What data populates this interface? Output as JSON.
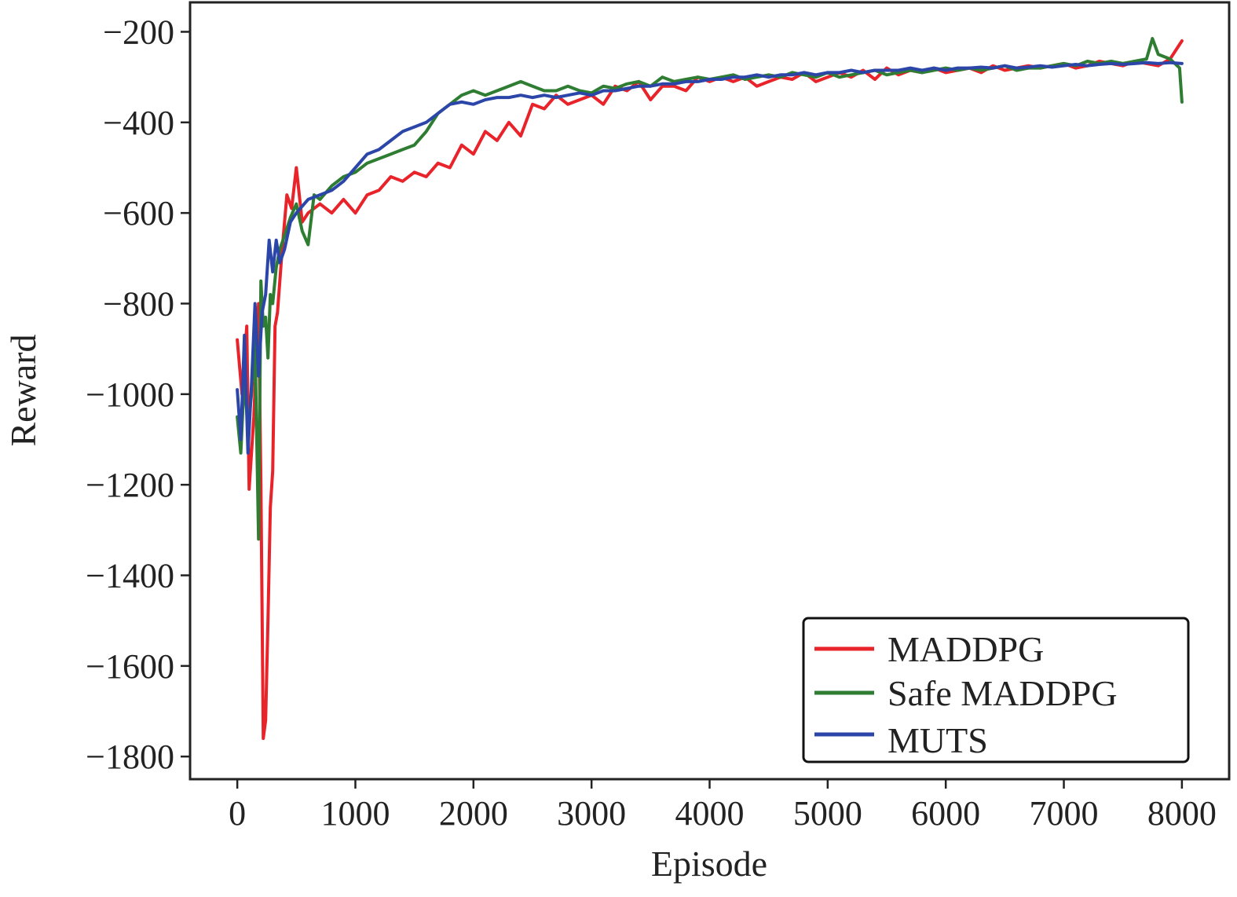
{
  "chart_data": {
    "type": "line",
    "title": "",
    "xlabel": "Episode",
    "ylabel": "Reward",
    "xlim": [
      -400,
      8400
    ],
    "ylim": [
      -1850,
      -135
    ],
    "xticks": [
      0,
      1000,
      2000,
      3000,
      4000,
      5000,
      6000,
      7000,
      8000
    ],
    "xtick_labels": [
      "0",
      "1000",
      "2000",
      "3000",
      "4000",
      "5000",
      "6000",
      "7000",
      "8000"
    ],
    "yticks": [
      -200,
      -400,
      -600,
      -800,
      -1000,
      -1200,
      -1400,
      -1600,
      -1800
    ],
    "ytick_labels": [
      "−200",
      "−400",
      "−600",
      "−800",
      "−1000",
      "−1200",
      "−1400",
      "−1600",
      "−1800"
    ],
    "grid": false,
    "legend_position": "lower-right",
    "series": [
      {
        "name": "MADDPG",
        "color": "#e8232a",
        "x": [
          0,
          40,
          80,
          100,
          140,
          180,
          200,
          220,
          240,
          260,
          280,
          300,
          320,
          340,
          380,
          420,
          460,
          500,
          550,
          600,
          700,
          800,
          900,
          1000,
          1100,
          1200,
          1300,
          1400,
          1500,
          1600,
          1700,
          1800,
          1900,
          2000,
          2100,
          2200,
          2300,
          2400,
          2500,
          2600,
          2700,
          2800,
          2900,
          3000,
          3100,
          3200,
          3300,
          3400,
          3500,
          3600,
          3700,
          3800,
          3900,
          4000,
          4100,
          4200,
          4300,
          4400,
          4500,
          4600,
          4700,
          4800,
          4900,
          5000,
          5100,
          5200,
          5300,
          5400,
          5500,
          5600,
          5700,
          5800,
          5900,
          6000,
          6100,
          6200,
          6300,
          6400,
          6500,
          6600,
          6700,
          6800,
          6900,
          7000,
          7100,
          7200,
          7300,
          7400,
          7500,
          7600,
          7700,
          7800,
          7900,
          8000
        ],
        "values": [
          -880,
          -1000,
          -850,
          -1210,
          -1050,
          -800,
          -1200,
          -1760,
          -1720,
          -1500,
          -1250,
          -1170,
          -850,
          -820,
          -680,
          -560,
          -590,
          -500,
          -620,
          -600,
          -580,
          -600,
          -570,
          -600,
          -560,
          -550,
          -520,
          -530,
          -510,
          -520,
          -490,
          -500,
          -450,
          -470,
          -420,
          -440,
          -400,
          -430,
          -360,
          -370,
          -340,
          -360,
          -350,
          -340,
          -360,
          -320,
          -330,
          -310,
          -350,
          -320,
          -320,
          -330,
          -300,
          -310,
          -300,
          -310,
          -300,
          -320,
          -310,
          -300,
          -305,
          -290,
          -310,
          -300,
          -290,
          -300,
          -285,
          -305,
          -280,
          -295,
          -285,
          -290,
          -280,
          -290,
          -285,
          -280,
          -290,
          -275,
          -285,
          -280,
          -275,
          -280,
          -275,
          -270,
          -280,
          -275,
          -265,
          -270,
          -275,
          -265,
          -270,
          -275,
          -260,
          -220
        ]
      },
      {
        "name": "Safe MADDPG",
        "color": "#2e7d32",
        "x": [
          0,
          30,
          60,
          90,
          120,
          150,
          180,
          200,
          220,
          240,
          260,
          280,
          300,
          330,
          360,
          400,
          450,
          500,
          550,
          600,
          650,
          700,
          800,
          900,
          1000,
          1100,
          1200,
          1300,
          1400,
          1500,
          1600,
          1700,
          1800,
          1900,
          2000,
          2100,
          2200,
          2300,
          2400,
          2500,
          2600,
          2700,
          2800,
          2900,
          3000,
          3100,
          3200,
          3300,
          3400,
          3500,
          3600,
          3700,
          3800,
          3900,
          4000,
          4100,
          4200,
          4300,
          4400,
          4500,
          4600,
          4700,
          4800,
          4900,
          5000,
          5100,
          5200,
          5300,
          5400,
          5500,
          5600,
          5700,
          5800,
          5900,
          6000,
          6100,
          6200,
          6300,
          6400,
          6500,
          6600,
          6700,
          6800,
          6900,
          7000,
          7100,
          7200,
          7300,
          7400,
          7500,
          7600,
          7700,
          7750,
          7800,
          7900,
          7980,
          8000
        ],
        "values": [
          -1050,
          -1130,
          -960,
          -1080,
          -1000,
          -880,
          -1320,
          -750,
          -850,
          -830,
          -920,
          -780,
          -800,
          -720,
          -680,
          -650,
          -610,
          -580,
          -640,
          -670,
          -560,
          -570,
          -540,
          -520,
          -510,
          -490,
          -480,
          -470,
          -460,
          -450,
          -420,
          -380,
          -360,
          -340,
          -330,
          -340,
          -330,
          -320,
          -310,
          -320,
          -330,
          -330,
          -320,
          -330,
          -335,
          -320,
          -325,
          -315,
          -310,
          -320,
          -300,
          -310,
          -305,
          -300,
          -305,
          -300,
          -295,
          -305,
          -300,
          -295,
          -300,
          -290,
          -295,
          -300,
          -290,
          -300,
          -295,
          -290,
          -285,
          -295,
          -290,
          -285,
          -290,
          -285,
          -280,
          -285,
          -280,
          -285,
          -280,
          -275,
          -285,
          -280,
          -280,
          -275,
          -270,
          -275,
          -265,
          -270,
          -265,
          -270,
          -265,
          -260,
          -215,
          -250,
          -260,
          -280,
          -355
        ]
      },
      {
        "name": "MUTS",
        "color": "#2b46a8",
        "x": [
          0,
          30,
          60,
          90,
          120,
          150,
          180,
          210,
          240,
          270,
          300,
          330,
          360,
          400,
          450,
          500,
          600,
          700,
          800,
          900,
          1000,
          1100,
          1200,
          1300,
          1400,
          1500,
          1600,
          1700,
          1800,
          1900,
          2000,
          2100,
          2200,
          2300,
          2400,
          2500,
          2600,
          2700,
          2800,
          2900,
          3000,
          3100,
          3200,
          3300,
          3400,
          3500,
          3600,
          3700,
          3800,
          3900,
          4000,
          4100,
          4200,
          4300,
          4400,
          4500,
          4600,
          4700,
          4800,
          4900,
          5000,
          5100,
          5200,
          5300,
          5400,
          5500,
          5600,
          5700,
          5800,
          5900,
          6000,
          6100,
          6200,
          6300,
          6400,
          6500,
          6600,
          6700,
          6800,
          6900,
          7000,
          7100,
          7200,
          7300,
          7400,
          7500,
          7600,
          7700,
          7800,
          7900,
          8000
        ],
        "values": [
          -990,
          -1100,
          -870,
          -1130,
          -980,
          -800,
          -960,
          -820,
          -780,
          -660,
          -730,
          -660,
          -710,
          -680,
          -620,
          -600,
          -570,
          -560,
          -550,
          -530,
          -500,
          -470,
          -460,
          -440,
          -420,
          -410,
          -400,
          -380,
          -360,
          -355,
          -360,
          -350,
          -345,
          -345,
          -340,
          -345,
          -340,
          -345,
          -340,
          -335,
          -340,
          -330,
          -330,
          -325,
          -320,
          -320,
          -315,
          -315,
          -310,
          -310,
          -305,
          -305,
          -300,
          -300,
          -295,
          -300,
          -295,
          -295,
          -290,
          -295,
          -290,
          -290,
          -285,
          -290,
          -285,
          -285,
          -285,
          -280,
          -285,
          -280,
          -285,
          -280,
          -280,
          -278,
          -280,
          -275,
          -280,
          -278,
          -275,
          -278,
          -275,
          -272,
          -275,
          -272,
          -270,
          -272,
          -270,
          -268,
          -270,
          -268,
          -270
        ]
      }
    ]
  }
}
